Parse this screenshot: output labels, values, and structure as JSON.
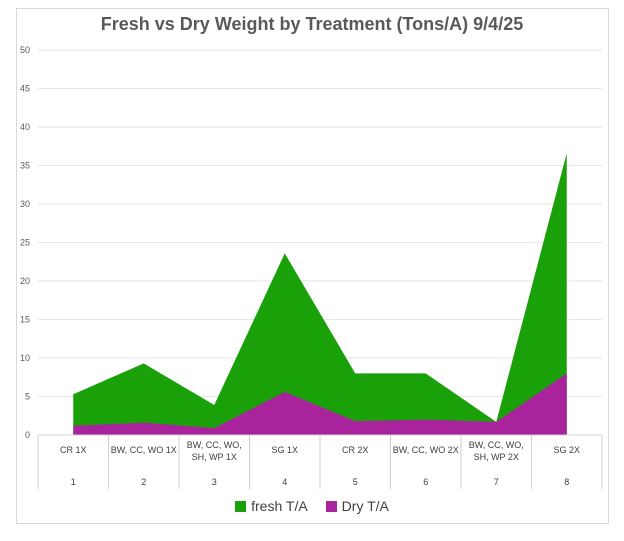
{
  "chart_data": {
    "type": "area",
    "title": "Fresh vs Dry Weight by Treatment (Tons/A) 9/4/25",
    "xlabel": "",
    "ylabel": "",
    "ylim": [
      0,
      50
    ],
    "yticks": [
      0,
      5,
      10,
      15,
      20,
      25,
      30,
      35,
      40,
      45,
      50
    ],
    "grid": true,
    "legend_position": "bottom",
    "categories": [
      {
        "treatment": [
          "CR  1X"
        ],
        "number": "1"
      },
      {
        "treatment": [
          "BW, CC, WO 1X"
        ],
        "number": "2"
      },
      {
        "treatment": [
          "BW, CC, WO,",
          "SH, WP 1X"
        ],
        "number": "3"
      },
      {
        "treatment": [
          "SG 1X"
        ],
        "number": "4"
      },
      {
        "treatment": [
          "CR  2X"
        ],
        "number": "5"
      },
      {
        "treatment": [
          "BW, CC, WO 2X"
        ],
        "number": "6"
      },
      {
        "treatment": [
          "BW, CC, WO,",
          "SH, WP 2X"
        ],
        "number": "7"
      },
      {
        "treatment": [
          "SG 2X"
        ],
        "number": "8"
      }
    ],
    "series": [
      {
        "name": "fresh T/A",
        "color": "#1aa10a",
        "values": [
          5.3,
          9.3,
          3.9,
          23.6,
          8.0,
          8.0,
          1.7,
          36.6
        ]
      },
      {
        "name": "Dry T/A",
        "color": "#a8239c",
        "values": [
          1.2,
          1.6,
          0.9,
          5.6,
          1.8,
          2.0,
          1.7,
          8.0
        ]
      }
    ]
  }
}
